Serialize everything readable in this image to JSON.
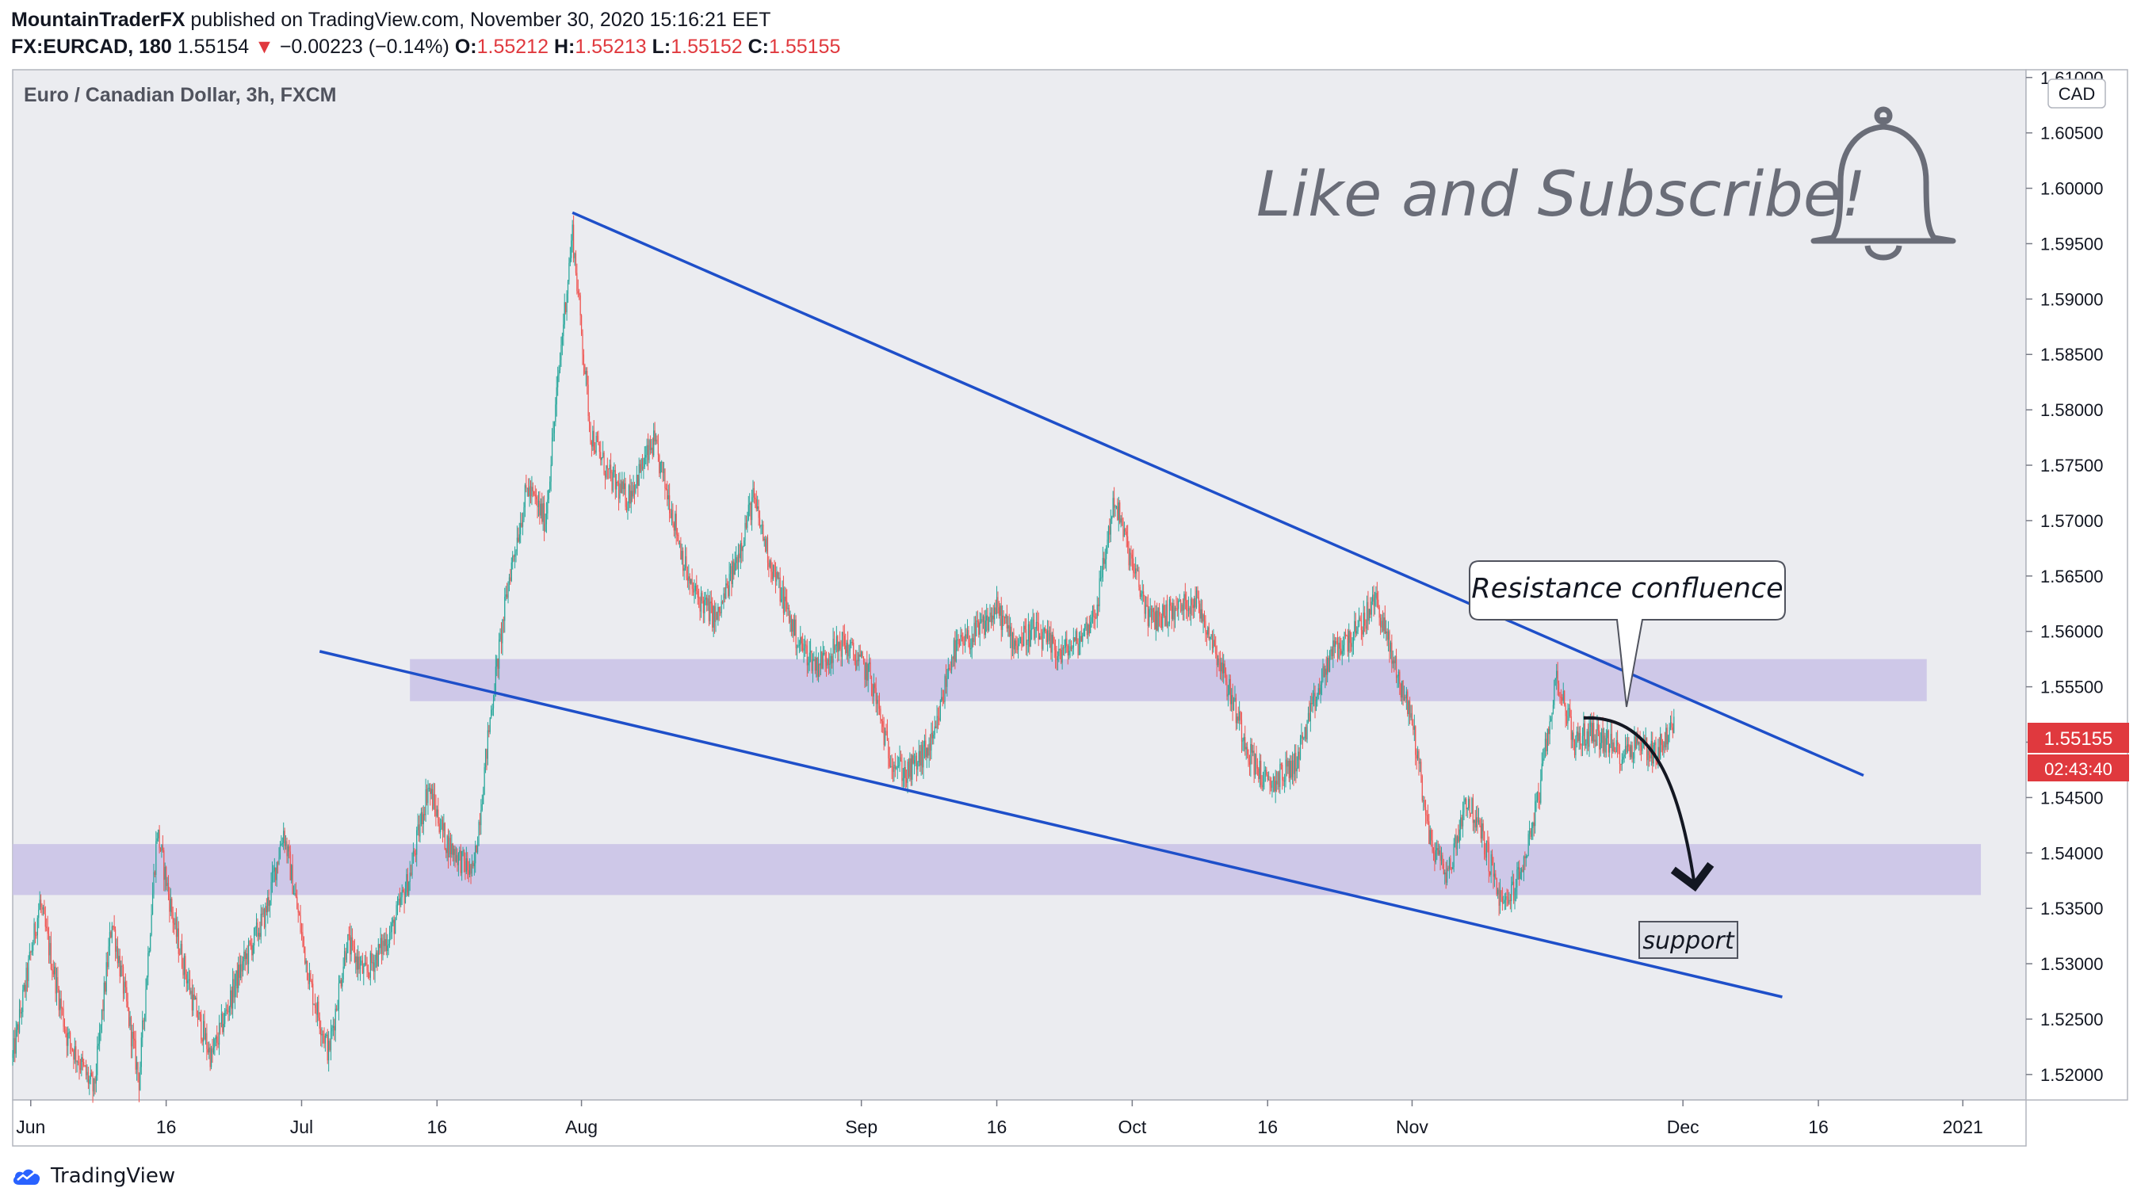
{
  "header": {
    "author": "MountainTraderFX",
    "published_text": "published on TradingView.com, November 30, 2020 15:16:21 EET",
    "symbol": "FX:EURCAD, 180",
    "last_price": "1.55154",
    "change": "−0.00223 (−0.14%)",
    "change_arrow": "▼",
    "o_label": "O:",
    "o_value": "1.55212",
    "h_label": "H:",
    "h_value": "1.55213",
    "l_label": "L:",
    "l_value": "1.55152",
    "c_label": "C:",
    "c_value": "1.55155"
  },
  "footer": {
    "brand": "TradingView"
  },
  "colors": {
    "up": "#26a69a",
    "down": "#ef5350",
    "trendline": "#1e4fc9",
    "zone": "#c9c2e6",
    "price_tag": "#e0393e",
    "plot_bg": "#ebecf0"
  },
  "chart_data": {
    "type": "candlestick",
    "title": "Euro / Canadian Dollar, 3h, FXCM",
    "currency_badge": "CAD",
    "y_range": [
      1.5177,
      1.6107
    ],
    "y_ticks": [
      "1.52000",
      "1.52500",
      "1.53000",
      "1.53500",
      "1.54000",
      "1.54500",
      "1.55000",
      "1.55500",
      "1.56000",
      "1.56500",
      "1.57000",
      "1.57500",
      "1.58000",
      "1.58500",
      "1.59000",
      "1.59500",
      "1.60000",
      "1.60500",
      "1.61000"
    ],
    "x_range": [
      "2020-05-30",
      "2021-01-08"
    ],
    "x_ticks": [
      {
        "date": "2020-06-01",
        "label": "Jun"
      },
      {
        "date": "2020-06-16",
        "label": "16"
      },
      {
        "date": "2020-07-01",
        "label": "Jul"
      },
      {
        "date": "2020-07-16",
        "label": "16"
      },
      {
        "date": "2020-08-01",
        "label": "Aug"
      },
      {
        "date": "2020-09-01",
        "label": "Sep"
      },
      {
        "date": "2020-09-16",
        "label": "16"
      },
      {
        "date": "2020-10-01",
        "label": "Oct"
      },
      {
        "date": "2020-10-16",
        "label": "16"
      },
      {
        "date": "2020-11-01",
        "label": "Nov"
      },
      {
        "date": "2020-12-01",
        "label": "Dec"
      },
      {
        "date": "2020-12-16",
        "label": "16"
      },
      {
        "date": "2021-01-01",
        "label": "2021"
      }
    ],
    "price_path": [
      [
        "2020-05-30",
        1.5215
      ],
      [
        "2020-06-02",
        1.5355
      ],
      [
        "2020-06-05",
        1.5235
      ],
      [
        "2020-06-08",
        1.5185
      ],
      [
        "2020-06-10",
        1.534
      ],
      [
        "2020-06-13",
        1.5195
      ],
      [
        "2020-06-15",
        1.542
      ],
      [
        "2020-06-17",
        1.533
      ],
      [
        "2020-06-19",
        1.5265
      ],
      [
        "2020-06-21",
        1.5215
      ],
      [
        "2020-06-24",
        1.529
      ],
      [
        "2020-06-27",
        1.5345
      ],
      [
        "2020-06-29",
        1.542
      ],
      [
        "2020-07-02",
        1.528
      ],
      [
        "2020-07-04",
        1.522
      ],
      [
        "2020-07-06",
        1.532
      ],
      [
        "2020-07-08",
        1.529
      ],
      [
        "2020-07-11",
        1.533
      ],
      [
        "2020-07-13",
        1.538
      ],
      [
        "2020-07-15",
        1.546
      ],
      [
        "2020-07-17",
        1.541
      ],
      [
        "2020-07-20",
        1.538
      ],
      [
        "2020-07-22",
        1.553
      ],
      [
        "2020-07-24",
        1.565
      ],
      [
        "2020-07-26",
        1.573
      ],
      [
        "2020-07-28",
        1.57
      ],
      [
        "2020-07-30",
        1.588
      ],
      [
        "2020-07-31",
        1.596
      ],
      [
        "2020-08-02",
        1.578
      ],
      [
        "2020-08-04",
        1.574
      ],
      [
        "2020-08-06",
        1.572
      ],
      [
        "2020-08-09",
        1.577
      ],
      [
        "2020-08-11",
        1.571
      ],
      [
        "2020-08-13",
        1.564
      ],
      [
        "2020-08-16",
        1.561
      ],
      [
        "2020-08-18",
        1.566
      ],
      [
        "2020-08-20",
        1.572
      ],
      [
        "2020-08-22",
        1.566
      ],
      [
        "2020-08-25",
        1.559
      ],
      [
        "2020-08-27",
        1.557
      ],
      [
        "2020-08-30",
        1.559
      ],
      [
        "2020-09-02",
        1.556
      ],
      [
        "2020-09-04",
        1.549
      ],
      [
        "2020-09-06",
        1.547
      ],
      [
        "2020-09-09",
        1.55
      ],
      [
        "2020-09-11",
        1.558
      ],
      [
        "2020-09-14",
        1.56
      ],
      [
        "2020-09-16",
        1.562
      ],
      [
        "2020-09-18",
        1.559
      ],
      [
        "2020-09-20",
        1.56
      ],
      [
        "2020-09-23",
        1.558
      ],
      [
        "2020-09-25",
        1.559
      ],
      [
        "2020-09-27",
        1.562
      ],
      [
        "2020-09-29",
        1.572
      ],
      [
        "2020-10-01",
        1.566
      ],
      [
        "2020-10-03",
        1.561
      ],
      [
        "2020-10-06",
        1.562
      ],
      [
        "2020-10-08",
        1.563
      ],
      [
        "2020-10-10",
        1.559
      ],
      [
        "2020-10-12",
        1.554
      ],
      [
        "2020-10-14",
        1.549
      ],
      [
        "2020-10-16",
        1.546
      ],
      [
        "2020-10-19",
        1.548
      ],
      [
        "2020-10-21",
        1.553
      ],
      [
        "2020-10-23",
        1.558
      ],
      [
        "2020-10-26",
        1.56
      ],
      [
        "2020-10-28",
        1.563
      ],
      [
        "2020-10-30",
        1.557
      ],
      [
        "2020-11-01",
        1.552
      ],
      [
        "2020-11-03",
        1.541
      ],
      [
        "2020-11-05",
        1.538
      ],
      [
        "2020-11-07",
        1.545
      ],
      [
        "2020-11-09",
        1.541
      ],
      [
        "2020-11-11",
        1.535
      ],
      [
        "2020-11-13",
        1.538
      ],
      [
        "2020-11-15",
        1.545
      ],
      [
        "2020-11-17",
        1.556
      ],
      [
        "2020-11-19",
        1.55
      ],
      [
        "2020-11-21",
        1.551
      ],
      [
        "2020-11-24",
        1.549
      ],
      [
        "2020-11-26",
        1.55
      ],
      [
        "2020-11-28",
        1.549
      ],
      [
        "2020-11-30",
        1.5515
      ]
    ],
    "zones": [
      {
        "x1": "2020-07-13",
        "x2": "2020-12-28",
        "y_low": 1.5537,
        "y_high": 1.5575
      },
      {
        "x1": "2020-05-30",
        "x2": "2021-01-03",
        "y_low": 1.5362,
        "y_high": 1.5408
      }
    ],
    "trendlines": [
      {
        "x1": "2020-07-31",
        "y1": 1.5978,
        "x2": "2020-12-21",
        "y2": 1.547
      },
      {
        "x1": "2020-07-03",
        "y1": 1.5582,
        "x2": "2020-12-12",
        "y2": 1.527
      }
    ],
    "annotations": {
      "resistance_label": "Resistance confluence",
      "support_label": "support",
      "promo_text": "Like and Subscribe!",
      "bell_icon": "bell-icon"
    },
    "last_price_tag": "1.55155",
    "countdown_tag": "02:43:40"
  }
}
